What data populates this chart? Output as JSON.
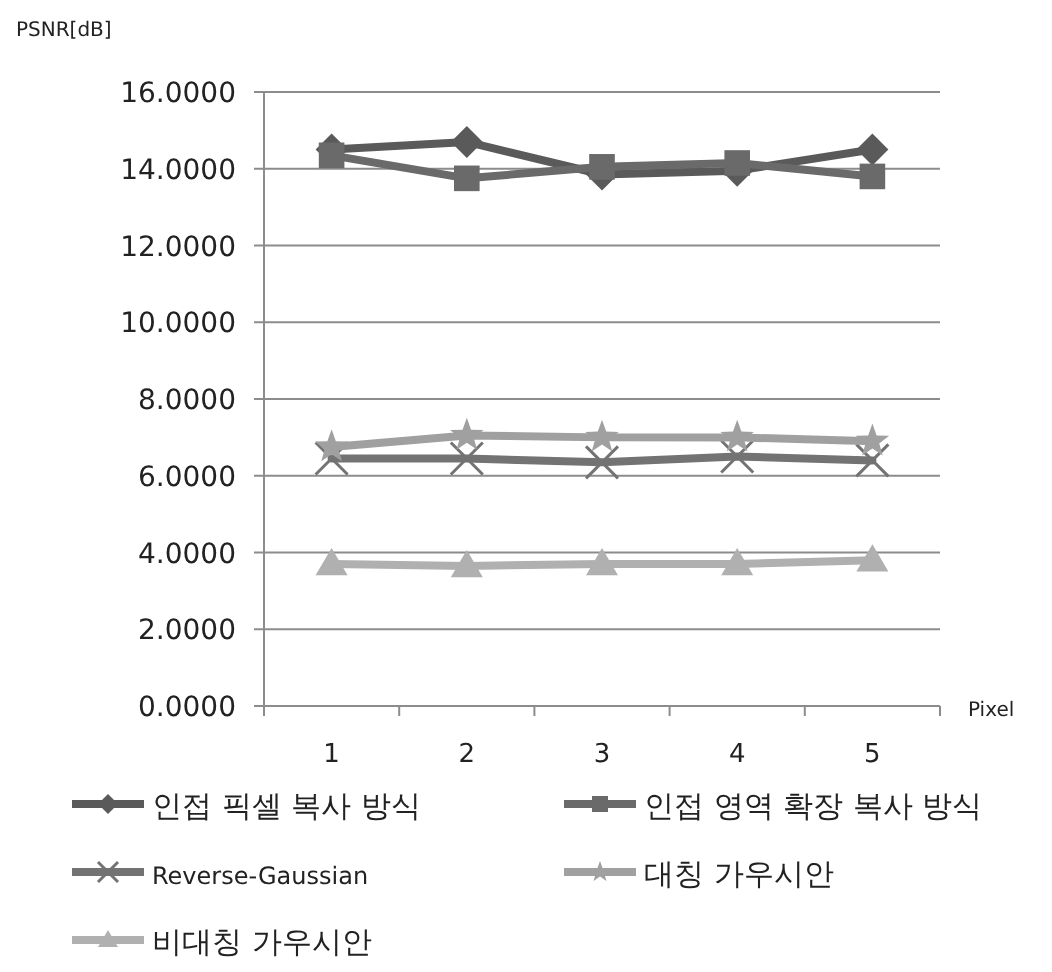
{
  "chart_data": {
    "type": "line",
    "ylabel": "PSNR[dB]",
    "xlabel": "Pixel",
    "categories": [
      "1",
      "2",
      "3",
      "4",
      "5"
    ],
    "series": [
      {
        "name": "인접 픽셀 복사 방식",
        "color": "#5a5a5a",
        "marker": "diamond",
        "values": [
          14.5,
          14.7,
          13.85,
          13.95,
          14.5
        ]
      },
      {
        "name": "인접 영역 확장 복사 방식",
        "color": "#6a6a6a",
        "marker": "square",
        "values": [
          14.35,
          13.75,
          14.05,
          14.15,
          13.8
        ]
      },
      {
        "name": "Reverse-Gaussian",
        "color": "#737373",
        "marker": "cross",
        "values": [
          6.45,
          6.45,
          6.35,
          6.5,
          6.4
        ]
      },
      {
        "name": "대칭 가우시안",
        "color": "#a0a0a0",
        "marker": "star",
        "values": [
          6.75,
          7.05,
          7.0,
          7.0,
          6.9
        ]
      },
      {
        "name": "비대칭 가우시안",
        "color": "#b0b0b0",
        "marker": "triangle",
        "values": [
          3.7,
          3.65,
          3.7,
          3.7,
          3.8
        ]
      }
    ],
    "ylim": [
      0,
      16
    ],
    "yticks": [
      {
        "value": 0,
        "label": "0.0000"
      },
      {
        "value": 2,
        "label": "2.0000"
      },
      {
        "value": 4,
        "label": "4.0000"
      },
      {
        "value": 6,
        "label": "6.0000"
      },
      {
        "value": 8,
        "label": "8.0000"
      },
      {
        "value": 10,
        "label": "10.0000"
      },
      {
        "value": 12,
        "label": "12.0000"
      },
      {
        "value": 14,
        "label": "14.0000"
      },
      {
        "value": 16,
        "label": "16.0000"
      }
    ],
    "grid": "y",
    "legend": "bottom",
    "line_style": "solid"
  }
}
